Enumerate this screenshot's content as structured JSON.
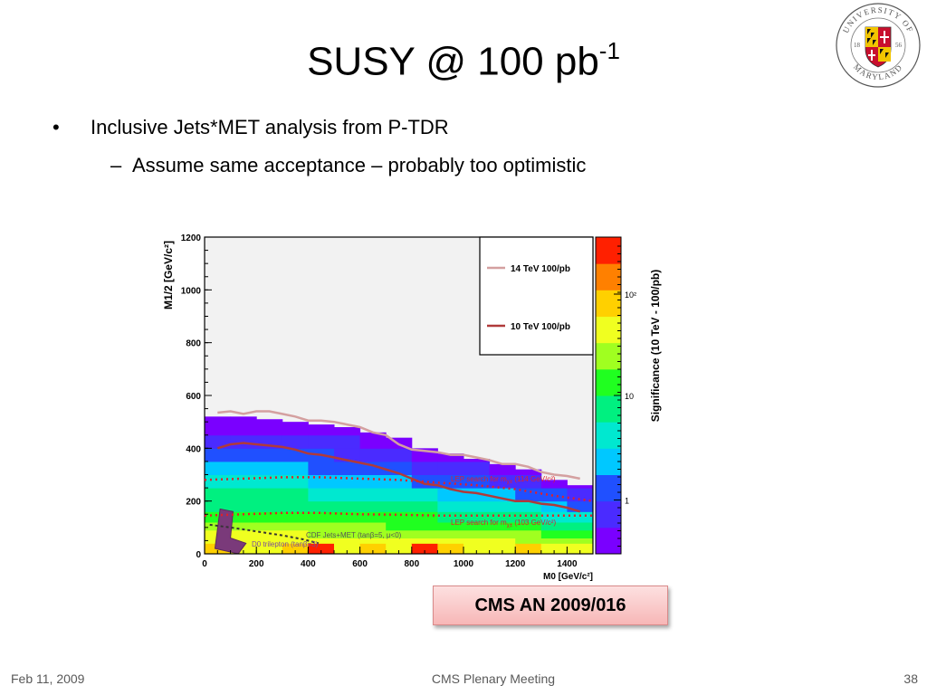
{
  "slide": {
    "title_main": "SUSY @ 100 pb",
    "title_sup": "-1",
    "bullets": [
      {
        "level": 1,
        "marker": "•",
        "text": "Inclusive Jets*MET analysis from P-TDR"
      },
      {
        "level": 2,
        "marker": "–",
        "text": "Assume same acceptance – probably too optimistic"
      }
    ],
    "reference": "CMS AN 2009/016",
    "footer": {
      "date": "Feb 11, 2009",
      "event": "CMS Plenary Meeting",
      "page": "38"
    },
    "logo": {
      "top_text": "UNIVERSITY OF",
      "bottom_text": "MARYLAND",
      "left_year": "18",
      "right_year": "56"
    }
  },
  "chart_data": {
    "type": "heatmap",
    "xlabel": "M0 [GeV/c²]",
    "ylabel": "M1/2 [GeV/c²]",
    "zlabel": "Significance (10 TeV - 100/pb)",
    "xlim": [
      0,
      1500
    ],
    "ylim": [
      0,
      1200
    ],
    "xticks": [
      "0",
      "200",
      "400",
      "600",
      "800",
      "1000",
      "1200",
      "1400"
    ],
    "yticks": [
      "0",
      "200",
      "400",
      "600",
      "800",
      "1000",
      "1200"
    ],
    "ztick_labels": [
      "1",
      "10",
      "10²"
    ],
    "zscale": "log",
    "grid": false,
    "legend_position": "top-right",
    "legend": [
      {
        "label": "14 TeV 100/pb",
        "color": "#d4a0a0"
      },
      {
        "label": "10 TeV 100/pb",
        "color": "#b03a3a"
      }
    ],
    "contours": [
      {
        "name": "14 TeV 100/pb",
        "x": [
          50,
          100,
          150,
          200,
          250,
          300,
          350,
          400,
          450,
          500,
          550,
          600,
          650,
          700,
          750,
          800,
          850,
          900,
          950,
          1000,
          1050,
          1100,
          1150,
          1200,
          1250,
          1300,
          1350,
          1400,
          1450
        ],
        "y": [
          535,
          540,
          530,
          540,
          540,
          530,
          520,
          505,
          505,
          500,
          490,
          480,
          460,
          450,
          415,
          395,
          390,
          385,
          375,
          375,
          365,
          355,
          340,
          340,
          330,
          310,
          300,
          295,
          285
        ]
      },
      {
        "name": "10 TeV 100/pb",
        "x": [
          50,
          100,
          150,
          200,
          250,
          300,
          350,
          400,
          450,
          500,
          550,
          600,
          650,
          700,
          750,
          800,
          850,
          900,
          950,
          1000,
          1050,
          1100,
          1150,
          1200,
          1250,
          1300,
          1350,
          1400,
          1450
        ],
        "y": [
          400,
          415,
          420,
          415,
          410,
          405,
          395,
          380,
          375,
          365,
          355,
          345,
          335,
          320,
          305,
          285,
          265,
          260,
          245,
          235,
          230,
          220,
          210,
          200,
          200,
          190,
          185,
          175,
          160
        ]
      }
    ],
    "annotations": [
      {
        "text": "LEP search for m",
        "sub": "χ±",
        "tail": " (114 GeV/c²)",
        "color": "#e0202a"
      },
      {
        "text": "LEP search for m",
        "sub": "χ±",
        "tail": " (103 GeV/c²)",
        "color": "#e0202a"
      },
      {
        "text": "CDF Jets+MET (tanβ=5, μ<0)",
        "color": "#555555"
      },
      {
        "text": "D0 trilepton (tanβ=3)",
        "color": "#7a4a9a"
      }
    ],
    "lep_lines": [
      {
        "y": [
          280,
          285,
          290,
          290,
          285,
          280,
          270,
          260,
          245,
          220,
          200
        ]
      },
      {
        "y": [
          145,
          150,
          155,
          155,
          150,
          148,
          145,
          145,
          145,
          145,
          145
        ]
      }
    ],
    "colormap": [
      "#7a00ff",
      "#4a2bff",
      "#2050ff",
      "#00c8ff",
      "#00e8d0",
      "#00f080",
      "#20ff20",
      "#a0ff20",
      "#f0ff20",
      "#ffd000",
      "#ff8000",
      "#ff2000"
    ],
    "cells": [
      {
        "x": 50,
        "y_top": 520,
        "level": 1
      },
      {
        "x": 150,
        "y_top": 520,
        "level": 1
      },
      {
        "x": 250,
        "y_top": 510,
        "level": 1
      },
      {
        "x": 350,
        "y_top": 500,
        "level": 1
      },
      {
        "x": 450,
        "y_top": 490,
        "level": 1
      },
      {
        "x": 550,
        "y_top": 480,
        "level": 1
      },
      {
        "x": 650,
        "y_top": 460,
        "level": 1
      },
      {
        "x": 750,
        "y_top": 440,
        "level": 1
      },
      {
        "x": 850,
        "y_top": 400,
        "level": 1
      },
      {
        "x": 950,
        "y_top": 380,
        "level": 1
      },
      {
        "x": 1050,
        "y_top": 360,
        "level": 1
      },
      {
        "x": 1150,
        "y_top": 340,
        "level": 1
      },
      {
        "x": 1250,
        "y_top": 320,
        "level": 1
      },
      {
        "x": 1350,
        "y_top": 280,
        "level": 1
      },
      {
        "x": 1450,
        "y_top": 260,
        "level": 1
      }
    ]
  }
}
